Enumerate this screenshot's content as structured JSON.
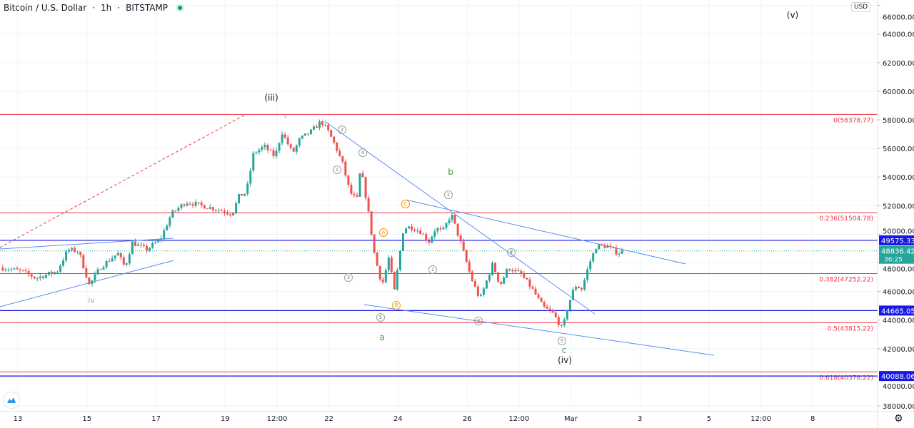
{
  "header": {
    "symbol": "Bitcoin / U.S. Dollar",
    "interval": "1h",
    "exchange": "BITSTAMP",
    "separator": "·"
  },
  "currency_label": "USD",
  "colors": {
    "up": "#26a69a",
    "down": "#ef5350",
    "fib": "#f23645",
    "level": "#1717e8",
    "trend": "#5b8def",
    "last": "#26a69a"
  },
  "chart_data": {
    "type": "candlestick",
    "title": "Bitcoin / U.S. Dollar · 1h · BITSTAMP",
    "ylim": [
      37500,
      66000
    ],
    "xlim_days_from_feb13": [
      -0.52,
      24.2
    ],
    "y_ticks": [
      "38000.00",
      "40000.00",
      "42000.00",
      "44000.00",
      "46000.00",
      "48000.00",
      "50000.00",
      "52000.00",
      "54000.00",
      "56000.00",
      "58000.00",
      "60000.00",
      "62000.00",
      "64000.00",
      "66000.00"
    ],
    "x_ticks": [
      {
        "label": "13",
        "day": 0
      },
      {
        "label": "15",
        "day": 2
      },
      {
        "label": "17",
        "day": 4
      },
      {
        "label": "19",
        "day": 6
      },
      {
        "label": "12:00",
        "day": 7.5
      },
      {
        "label": "22",
        "day": 9
      },
      {
        "label": "24",
        "day": 11
      },
      {
        "label": "26",
        "day": 13
      },
      {
        "label": "12:00",
        "day": 14.5
      },
      {
        "label": "Mar",
        "day": 16
      },
      {
        "label": "3",
        "day": 18
      },
      {
        "label": "5",
        "day": 20
      },
      {
        "label": "12:00",
        "day": 21.5
      },
      {
        "label": "8",
        "day": 23
      }
    ],
    "price_path": [
      [
        -0.52,
        47676
      ],
      [
        0.1,
        47426
      ],
      [
        0.52,
        46927
      ],
      [
        1.14,
        47426
      ],
      [
        1.45,
        48923
      ],
      [
        1.76,
        48823
      ],
      [
        2.07,
        46429
      ],
      [
        2.38,
        47676
      ],
      [
        2.89,
        48673
      ],
      [
        3.1,
        47676
      ],
      [
        3.31,
        49422
      ],
      [
        3.72,
        48923
      ],
      [
        4.13,
        49671
      ],
      [
        4.44,
        51416
      ],
      [
        4.86,
        52264
      ],
      [
        5.48,
        51915
      ],
      [
        5.89,
        51666
      ],
      [
        6.2,
        51416
      ],
      [
        6.4,
        52663
      ],
      [
        6.61,
        52913
      ],
      [
        6.82,
        55656
      ],
      [
        7.13,
        56155
      ],
      [
        7.44,
        55407
      ],
      [
        7.64,
        57152
      ],
      [
        7.95,
        55656
      ],
      [
        8.16,
        56653
      ],
      [
        8.47,
        57152
      ],
      [
        8.78,
        57900
      ],
      [
        8.99,
        57152
      ],
      [
        9.19,
        56155
      ],
      [
        9.4,
        54908
      ],
      [
        9.61,
        52913
      ],
      [
        9.81,
        52414
      ],
      [
        9.92,
        54658
      ],
      [
        10.12,
        51915
      ],
      [
        10.33,
        48424
      ],
      [
        10.54,
        46429
      ],
      [
        10.74,
        48424
      ],
      [
        10.89,
        45930
      ],
      [
        11.16,
        50419
      ],
      [
        11.36,
        50519
      ],
      [
        11.67,
        50170
      ],
      [
        11.88,
        49422
      ],
      [
        12.09,
        50419
      ],
      [
        12.29,
        50170
      ],
      [
        12.54,
        51416
      ],
      [
        12.81,
        49422
      ],
      [
        13.12,
        46927
      ],
      [
        13.37,
        45432
      ],
      [
        13.74,
        47925
      ],
      [
        13.95,
        46429
      ],
      [
        14.19,
        47676
      ],
      [
        14.57,
        47177
      ],
      [
        14.88,
        46180
      ],
      [
        15.19,
        44931
      ],
      [
        15.5,
        44434
      ],
      [
        15.76,
        43337
      ],
      [
        15.91,
        44931
      ],
      [
        16.12,
        46429
      ],
      [
        16.32,
        46180
      ],
      [
        16.53,
        47925
      ],
      [
        16.74,
        49172
      ],
      [
        17.05,
        49172
      ],
      [
        17.36,
        48673
      ],
      [
        17.52,
        48836
      ]
    ],
    "fib_levels": [
      {
        "label": "0(58378.77)",
        "price": 58378.77
      },
      {
        "label": "0.236(51504.78)",
        "price": 51504.78
      },
      {
        "label": "0.382(47252.22)",
        "price": 47252.22
      },
      {
        "label": "0.5(43815.22)",
        "price": 43815.22
      },
      {
        "label": "0.618(40378.22)",
        "price": 40378.22
      }
    ],
    "horizontal_levels": [
      {
        "label": "49575.33",
        "price": 49575.33
      },
      {
        "label": "44665.05",
        "price": 44665.05
      },
      {
        "label": "40088.06",
        "price": 40088.06
      }
    ],
    "trendlines": [
      {
        "style": "dashed-red",
        "from": [
          -0.52,
          49072
        ],
        "to": [
          6.61,
          58400
        ]
      },
      {
        "style": "blue",
        "from": [
          -0.52,
          48973
        ],
        "to": [
          4.5,
          49721
        ]
      },
      {
        "style": "blue",
        "from": [
          -0.52,
          44930
        ],
        "to": [
          4.5,
          48170
        ]
      },
      {
        "style": "blue",
        "from": [
          8.88,
          57900
        ],
        "to": [
          16.69,
          44434
        ]
      },
      {
        "style": "blue",
        "from": [
          11.22,
          52414
        ],
        "to": [
          19.32,
          47925
        ]
      },
      {
        "style": "blue",
        "from": [
          10.02,
          45083
        ],
        "to": [
          20.14,
          41542
        ]
      }
    ],
    "last_price": {
      "value": "48836.42",
      "countdown": "36:25",
      "price": 48836.42
    }
  },
  "annotations": {
    "iii": "(iii)",
    "v_big": "(v)",
    "iv_small": "iv",
    "v_small": "v",
    "iv_big": "(iv)",
    "a": "a",
    "b": "b",
    "c": "c",
    "n1": "1",
    "n2": "2",
    "n3": "3",
    "n4": "4",
    "n5": "5",
    "A": "A",
    "B": "B",
    "C": "C"
  }
}
